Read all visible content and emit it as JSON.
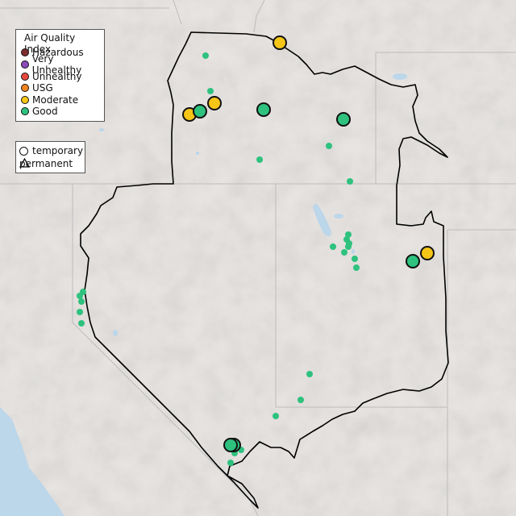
{
  "legend": {
    "title": "Air Quality Index",
    "categories": [
      {
        "label": "Hazardous",
        "color": "#7e2c2c"
      },
      {
        "label": "Very Unhealthy",
        "color": "#8e4ab8"
      },
      {
        "label": "Unhealthy",
        "color": "#e8483d"
      },
      {
        "label": "USG",
        "color": "#f08420"
      },
      {
        "label": "Moderate",
        "color": "#f5c518"
      },
      {
        "label": "Good",
        "color": "#2ec27e"
      }
    ]
  },
  "type_legend": {
    "temporary": "temporary",
    "permanent": "permanent"
  },
  "map": {
    "land_color": "#e7e4e1",
    "water_color": "#bcd6ea",
    "boundary_color": "#000000"
  }
}
